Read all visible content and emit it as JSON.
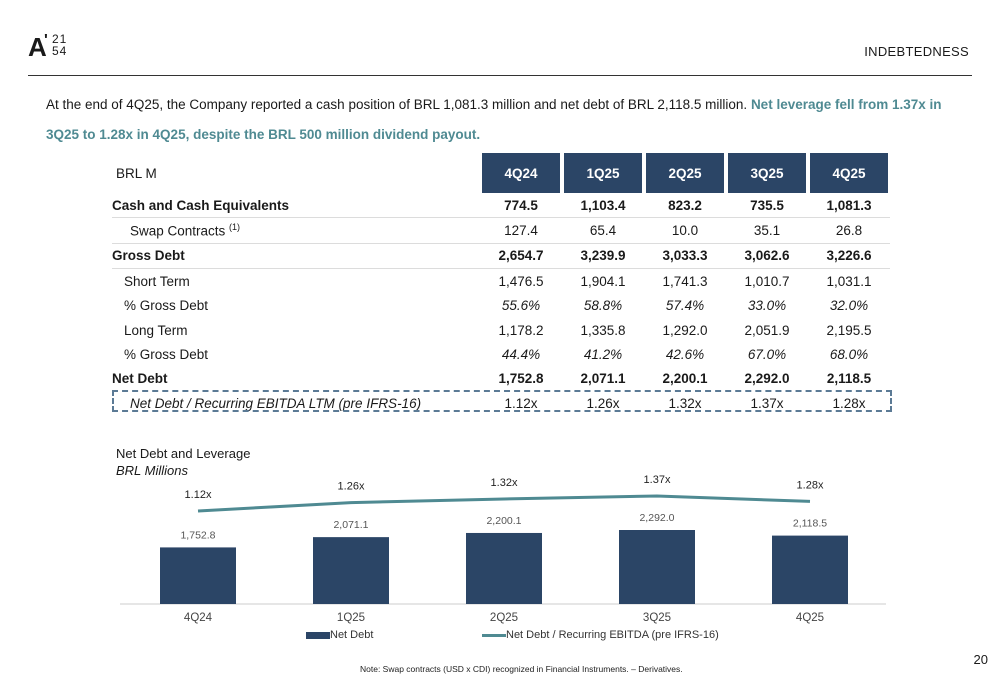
{
  "logo": {
    "main": "A",
    "tick": "'",
    "top": "21",
    "bottom": "54"
  },
  "header": {
    "section": "INDEBTEDNESS"
  },
  "intro": {
    "text": "At the end of 4Q25, the Company reported a cash position of BRL 1,081.3 million and net debt of BRL 2,118.5 million. ",
    "highlight": "Net leverage fell from 1.37x in 3Q25 to 1.28x in 4Q25, despite the BRL 500 million dividend payout."
  },
  "table": {
    "corner_label": "BRL M",
    "periods": [
      "4Q24",
      "1Q25",
      "2Q25",
      "3Q25",
      "4Q25"
    ],
    "rows": [
      {
        "label": "Cash and Cash Equivalents",
        "sup": "",
        "values": [
          "774.5",
          "1,103.4",
          "823.2",
          "735.5",
          "1,081.3"
        ]
      },
      {
        "label": "Swap Contracts ",
        "sup": "(1)",
        "values": [
          "127.4",
          "65.4",
          "10.0",
          "35.1",
          "26.8"
        ]
      },
      {
        "label": "Gross Debt",
        "sup": "",
        "values": [
          "2,654.7",
          "3,239.9",
          "3,033.3",
          "3,062.6",
          "3,226.6"
        ]
      },
      {
        "label": "Short Term",
        "sup": "",
        "values": [
          "1,476.5",
          "1,904.1",
          "1,741.3",
          "1,010.7",
          "1,031.1"
        ]
      },
      {
        "label": "% Gross Debt",
        "sup": "",
        "values": [
          "55.6%",
          "58.8%",
          "57.4%",
          "33.0%",
          "32.0%"
        ]
      },
      {
        "label": "Long Term",
        "sup": "",
        "values": [
          "1,178.2",
          "1,335.8",
          "1,292.0",
          "2,051.9",
          "2,195.5"
        ]
      },
      {
        "label": "% Gross Debt",
        "sup": "",
        "values": [
          "44.4%",
          "41.2%",
          "42.6%",
          "67.0%",
          "68.0%"
        ]
      },
      {
        "label": "Net Debt",
        "sup": "",
        "values": [
          "1,752.8",
          "2,071.1",
          "2,200.1",
          "2,292.0",
          "2,118.5"
        ]
      },
      {
        "label": "Net Debt / Recurring EBITDA LTM (pre IFRS-16)",
        "sup": "",
        "values": [
          "1.12x",
          "1.26x",
          "1.32x",
          "1.37x",
          "1.28x"
        ]
      }
    ]
  },
  "chart_data": {
    "type": "bar",
    "title": "Net Debt and Leverage",
    "subtitle": "BRL Millions",
    "categories": [
      "4Q24",
      "1Q25",
      "2Q25",
      "3Q25",
      "4Q25"
    ],
    "series": [
      {
        "name": "Net Debt",
        "kind": "bar",
        "values": [
          1752.8,
          2071.1,
          2200.1,
          2292.0,
          2118.5
        ],
        "labels": [
          "1,752.8",
          "2,071.1",
          "2,200.1",
          "2,292.0",
          "2,118.5"
        ],
        "color": "#2b4566"
      },
      {
        "name": "Net Debt / Recurring EBITDA (pre IFRS-16)",
        "kind": "line",
        "values": [
          1.12,
          1.26,
          1.32,
          1.37,
          1.28
        ],
        "labels": [
          "1.12x",
          "1.26x",
          "1.32x",
          "1.37x",
          "1.28x"
        ],
        "color": "#4f8a92"
      }
    ],
    "legend": "bottom-center",
    "grid": false
  },
  "footer": {
    "note": "Note: Swap contracts (USD x CDI) recognized in Financial Instruments. – Derivatives.",
    "page": "20"
  }
}
